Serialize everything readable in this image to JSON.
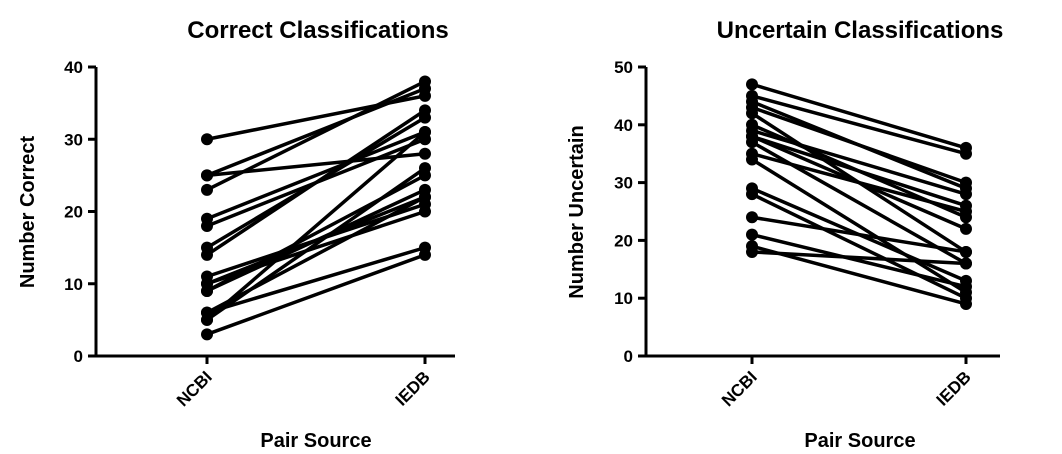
{
  "chart_data": [
    {
      "type": "line",
      "title": "Correct Classifications",
      "xlabel": "Pair Source",
      "ylabel": "Number Correct",
      "categories": [
        "NCBI",
        "IEDB"
      ],
      "ylim": [
        0,
        40
      ],
      "yticks": [
        0,
        10,
        20,
        30,
        40
      ],
      "grid": false,
      "pairs": [
        [
          30,
          36
        ],
        [
          25,
          28
        ],
        [
          25,
          37
        ],
        [
          23,
          38
        ],
        [
          19,
          31
        ],
        [
          18,
          30
        ],
        [
          15,
          33
        ],
        [
          14,
          34
        ],
        [
          11,
          21
        ],
        [
          10,
          22
        ],
        [
          10,
          20
        ],
        [
          9,
          25
        ],
        [
          6,
          22
        ],
        [
          6,
          15
        ],
        [
          5,
          26
        ],
        [
          5,
          31
        ],
        [
          3,
          14
        ],
        [
          9,
          23
        ]
      ]
    },
    {
      "type": "line",
      "title": "Uncertain Classifications",
      "xlabel": "Pair Source",
      "ylabel": "Number Uncertain",
      "categories": [
        "NCBI",
        "IEDB"
      ],
      "ylim": [
        0,
        50
      ],
      "yticks": [
        0,
        10,
        20,
        30,
        40,
        50
      ],
      "grid": false,
      "pairs": [
        [
          47,
          36
        ],
        [
          45,
          35
        ],
        [
          44,
          29
        ],
        [
          43,
          30
        ],
        [
          42,
          18
        ],
        [
          39,
          28
        ],
        [
          38,
          26
        ],
        [
          38,
          22
        ],
        [
          37,
          16
        ],
        [
          35,
          25
        ],
        [
          34,
          11
        ],
        [
          29,
          13
        ],
        [
          28,
          10
        ],
        [
          24,
          18
        ],
        [
          21,
          12
        ],
        [
          19,
          9
        ],
        [
          18,
          16
        ],
        [
          40,
          24
        ]
      ]
    }
  ]
}
